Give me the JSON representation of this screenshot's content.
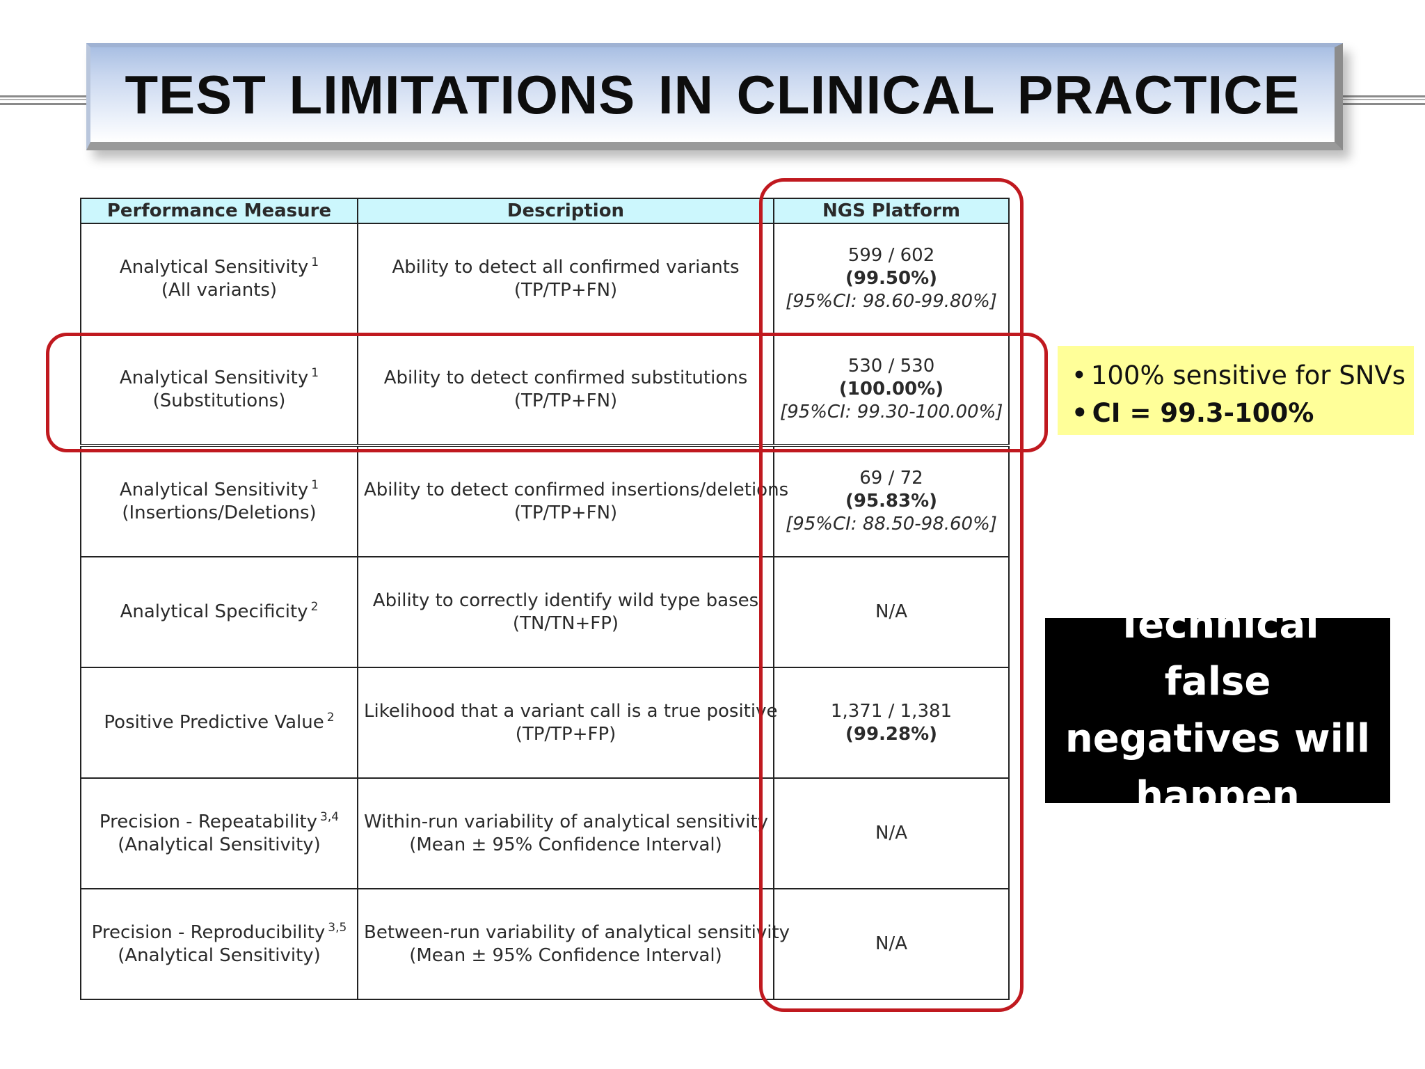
{
  "title": "TEST LIMITATIONS IN CLINICAL PRACTICE",
  "table": {
    "headers": [
      "Performance Measure",
      "Description",
      "NGS Platform"
    ],
    "rows": [
      {
        "measure": "Analytical Sensitivity",
        "measure_sup": "1",
        "measure_sub": "(All variants)",
        "description": "Ability to detect all confirmed variants",
        "description_sub": "(TP/TP+FN)",
        "ngs_count": "599 / 602",
        "ngs_percent": "(99.50%)",
        "ngs_ci": "[95%CI: 98.60-99.80%]"
      },
      {
        "measure": "Analytical Sensitivity",
        "measure_sup": "1",
        "measure_sub": "(Substitutions)",
        "description": "Ability to detect confirmed substitutions",
        "description_sub": "(TP/TP+FN)",
        "ngs_count": "530 / 530",
        "ngs_percent": "(100.00%)",
        "ngs_ci": "[95%CI: 99.30-100.00%]"
      },
      {
        "measure": "Analytical Sensitivity",
        "measure_sup": "1",
        "measure_sub": "(Insertions/Deletions)",
        "description": "Ability to detect confirmed insertions/deletions",
        "description_sub": "(TP/TP+FN)",
        "ngs_count": "69 / 72",
        "ngs_percent": "(95.83%)",
        "ngs_ci": "[95%CI: 88.50-98.60%]"
      },
      {
        "measure": "Analytical Specificity",
        "measure_sup": "2",
        "measure_sub": "",
        "description": "Ability to correctly identify wild type bases",
        "description_sub": "(TN/TN+FP)",
        "ngs_count": "N/A",
        "ngs_percent": "",
        "ngs_ci": ""
      },
      {
        "measure": "Positive Predictive Value",
        "measure_sup": "2",
        "measure_sub": "",
        "description": "Likelihood that a variant call is a true positive",
        "description_sub": "(TP/TP+FP)",
        "ngs_count": "1,371 / 1,381",
        "ngs_percent": "(99.28%)",
        "ngs_ci": ""
      },
      {
        "measure": "Precision - Repeatability",
        "measure_sup": "3,4",
        "measure_sub": "(Analytical Sensitivity)",
        "description": "Within-run variability of analytical sensitivity",
        "description_sub": "(Mean ± 95% Confidence Interval)",
        "ngs_count": "N/A",
        "ngs_percent": "",
        "ngs_ci": ""
      },
      {
        "measure": "Precision - Reproducibility",
        "measure_sup": "3,5",
        "measure_sub": "(Analytical Sensitivity)",
        "description": "Between-run variability of analytical sensitivity",
        "description_sub": "(Mean ± 95% Confidence Interval)",
        "ngs_count": "N/A",
        "ngs_percent": "",
        "ngs_ci": ""
      }
    ]
  },
  "callout": {
    "items": [
      "100% sensitive for SNVs",
      "CI = 99.3-100%"
    ]
  },
  "warning_box": {
    "text": "Technical false negatives will happen"
  },
  "colors": {
    "highlight_red": "#c0191f",
    "header_cyan": "#ccf7fd",
    "callout_yellow": "#ffff99",
    "warning_black": "#000000"
  }
}
